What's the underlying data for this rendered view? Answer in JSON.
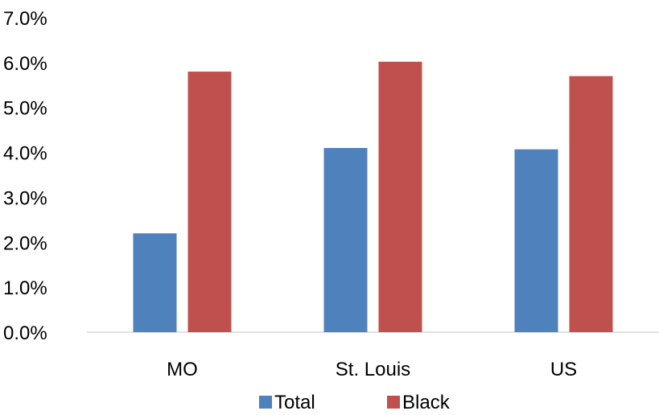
{
  "chart_data": {
    "type": "bar",
    "categories": [
      "MO",
      "St. Louis",
      "US"
    ],
    "series": [
      {
        "name": "Total",
        "color": "#4F81BD",
        "values": [
          0.022,
          0.041,
          0.0407
        ]
      },
      {
        "name": "Black",
        "color": "#C0504D",
        "values": [
          0.058,
          0.0602,
          0.057
        ]
      }
    ],
    "ylim": [
      0,
      0.07
    ],
    "yticks": [
      0,
      0.01,
      0.02,
      0.03,
      0.04,
      0.05,
      0.06,
      0.07
    ],
    "ytick_labels": [
      "0.0%",
      "1.0%",
      "2.0%",
      "3.0%",
      "4.0%",
      "5.0%",
      "6.0%",
      "7.0%"
    ],
    "grid": false,
    "legend_position": "bottom"
  }
}
